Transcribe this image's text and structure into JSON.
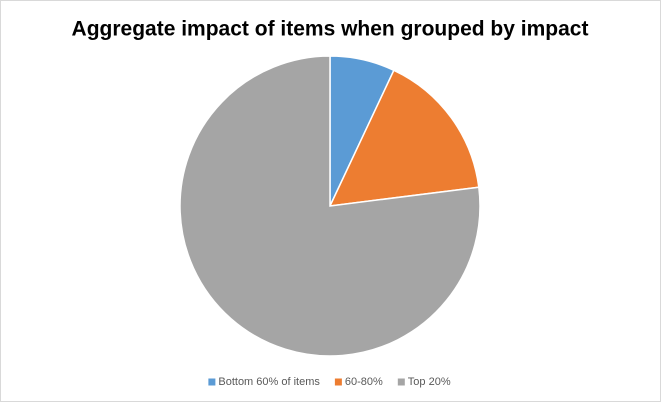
{
  "chart_data": {
    "type": "pie",
    "title": "Aggregate impact of items when grouped by impact",
    "categories": [
      "Bottom 60% of items",
      "60-80%",
      "Top 20%"
    ],
    "values": [
      7,
      16,
      77
    ],
    "colors": [
      "#5b9bd5",
      "#ed7d31",
      "#a5a5a5"
    ],
    "legend": "bottom"
  }
}
